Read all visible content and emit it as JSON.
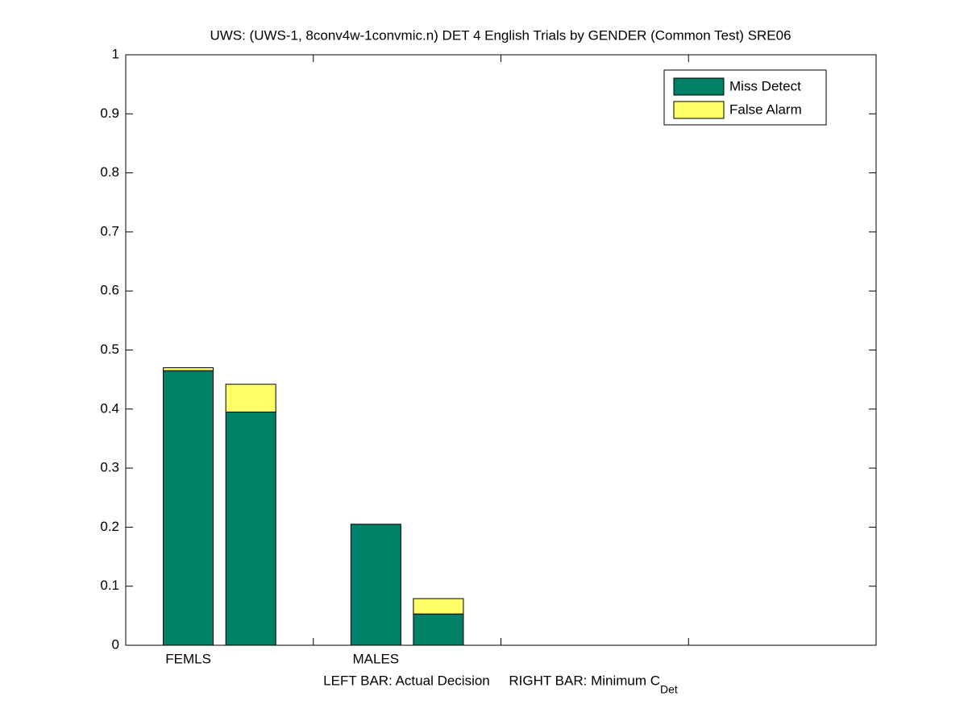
{
  "chart_data": {
    "type": "stacked-bar",
    "title": "UWS: (UWS-1, 8conv4w-1convmic.n) DET 4 English Trials by GENDER (Common Test) SRE06",
    "xlabel": "LEFT BAR: Actual Decision     RIGHT BAR: Minimum C",
    "xlabel_subscript": "Det",
    "categories": [
      "FEMLS",
      null,
      "MALES",
      null
    ],
    "series": [
      {
        "name": "Miss Detect",
        "color": "#008066",
        "values": [
          0.465,
          0.395,
          0.205,
          0.053
        ]
      },
      {
        "name": "False Alarm",
        "color": "#ffff66",
        "values": [
          0.005,
          0.047,
          0,
          0.026
        ]
      }
    ],
    "ylim": [
      0,
      1
    ],
    "yticks": [
      0,
      0.1,
      0.2,
      0.3,
      0.4,
      0.5,
      0.6,
      0.7,
      0.8,
      0.9,
      1
    ],
    "legend": "top-right"
  }
}
